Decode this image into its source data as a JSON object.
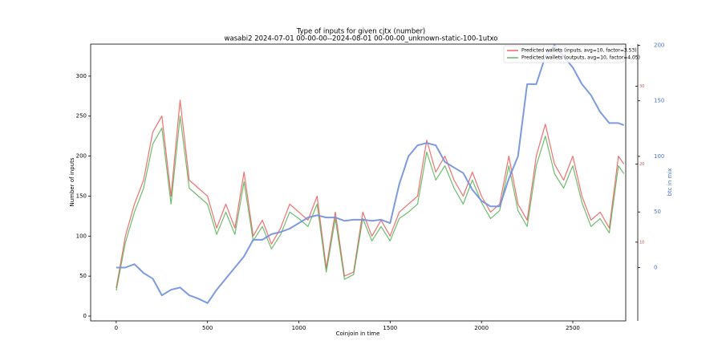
{
  "chart_data": {
    "type": "line",
    "title": "Type of inputs for given cjtx (number)",
    "subtitle": "wasabi2 2024-07-01 00-00-00--2024-08-01 00-00-00_unknown-static-100-1utxo",
    "x_label": "Coinjoin in time",
    "y_label": "Number of inputs",
    "y2_label": "btc in mix",
    "x": [
      0,
      50,
      100,
      150,
      200,
      250,
      300,
      350,
      400,
      450,
      500,
      550,
      600,
      650,
      700,
      750,
      800,
      850,
      900,
      950,
      1000,
      1050,
      1100,
      1150,
      1200,
      1250,
      1300,
      1350,
      1400,
      1450,
      1500,
      1550,
      1600,
      1650,
      1700,
      1750,
      1800,
      1850,
      1900,
      1950,
      2000,
      2050,
      2100,
      2150,
      2200,
      2250,
      2300,
      2350,
      2400,
      2450,
      2500,
      2550,
      2600,
      2650,
      2700,
      2750,
      2780
    ],
    "series": [
      {
        "name": "Predicted wallets (inputs, avg=10, factor=3.53)",
        "color": "#e8433f",
        "values": [
          35,
          100,
          140,
          170,
          230,
          250,
          150,
          270,
          170,
          160,
          150,
          110,
          140,
          110,
          180,
          100,
          120,
          90,
          110,
          140,
          130,
          120,
          150,
          60,
          130,
          50,
          55,
          130,
          100,
          120,
          100,
          130,
          140,
          150,
          220,
          180,
          200,
          170,
          150,
          180,
          150,
          130,
          140,
          200,
          140,
          120,
          200,
          240,
          190,
          170,
          200,
          150,
          120,
          130,
          110,
          200,
          190
        ]
      },
      {
        "name": "Predicted wallets (outputs, avg=10, factor=4.05)",
        "color": "#3fa63f",
        "values": [
          32,
          92,
          130,
          160,
          215,
          235,
          140,
          250,
          160,
          150,
          140,
          102,
          130,
          102,
          168,
          94,
          112,
          84,
          102,
          130,
          122,
          112,
          140,
          55,
          122,
          46,
          52,
          122,
          94,
          112,
          94,
          122,
          130,
          140,
          205,
          170,
          188,
          160,
          140,
          170,
          142,
          122,
          132,
          188,
          132,
          112,
          188,
          225,
          178,
          160,
          188,
          142,
          112,
          122,
          104,
          188,
          178
        ]
      },
      {
        "name": "btc in mix",
        "color": "#6f8fdc",
        "axis": "y2",
        "values": [
          0,
          0,
          3,
          -5,
          -10,
          -25,
          -20,
          -18,
          -25,
          -28,
          -32,
          -20,
          -10,
          0,
          10,
          25,
          25,
          30,
          32,
          35,
          40,
          45,
          47,
          45,
          45,
          42,
          43,
          43,
          42,
          43,
          40,
          75,
          100,
          110,
          112,
          110,
          95,
          90,
          85,
          70,
          60,
          55,
          55,
          80,
          100,
          165,
          165,
          190,
          200,
          190,
          180,
          165,
          155,
          140,
          130,
          130,
          128
        ]
      }
    ],
    "xlim": [
      -140,
      2790
    ],
    "xticks": [
      0,
      500,
      1000,
      1500,
      2000,
      2500
    ],
    "ylim": [
      -6,
      340
    ],
    "yticks": [
      0,
      50,
      100,
      150,
      200,
      250,
      300
    ],
    "y2lim": [
      -48,
      201
    ],
    "y2ticks": [
      0,
      50,
      100,
      150,
      200
    ],
    "y3lim": [
      -0.1,
      35.4
    ],
    "y3ticks": [
      10,
      20,
      30
    ],
    "legend": "upper right"
  }
}
